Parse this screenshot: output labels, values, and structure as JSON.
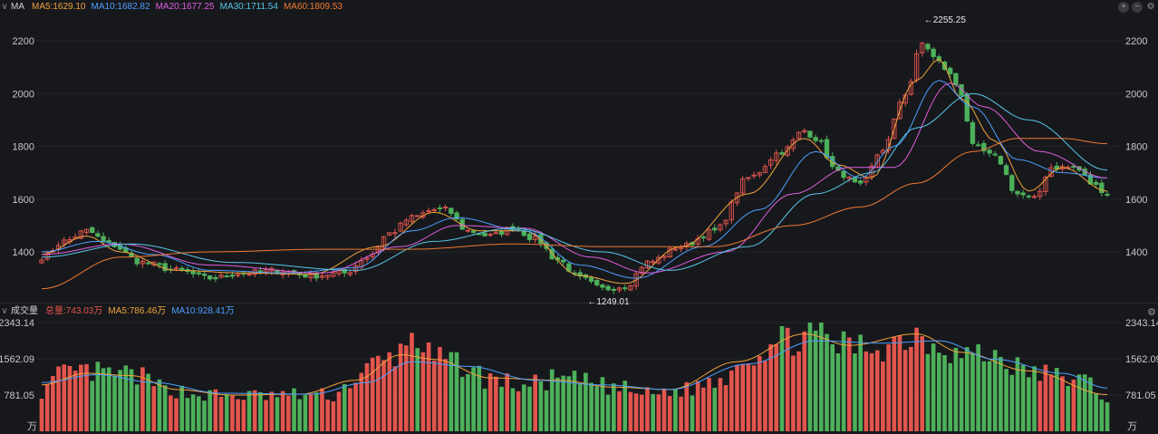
{
  "main_legend": {
    "toggle": "∨",
    "title": "MA",
    "items": [
      {
        "label": "MA5:1629.10",
        "color": "#f1a33a"
      },
      {
        "label": "MA10:1682.82",
        "color": "#4d9eff"
      },
      {
        "label": "MA20:1677.25",
        "color": "#e05fe0"
      },
      {
        "label": "MA30:1711.54",
        "color": "#58c6e6"
      },
      {
        "label": "MA60:1809.53",
        "color": "#ef7a32"
      }
    ]
  },
  "vol_legend": {
    "toggle": "∨",
    "title": "成交量",
    "items": [
      {
        "label": "总量:743.03万",
        "color": "#e2554d"
      },
      {
        "label": "MA5:786.46万",
        "color": "#f1a33a"
      },
      {
        "label": "MA10:928.41万",
        "color": "#4d9eff"
      }
    ]
  },
  "icons": {
    "add": "plus-circle-icon",
    "remove": "minus-circle-icon",
    "settings": "gear-icon"
  },
  "colors": {
    "up": "#e2554d",
    "down": "#4db05a",
    "ma5": "#f1a33a",
    "ma10": "#4d9eff",
    "ma20": "#e05fe0",
    "ma30": "#58c6e6",
    "ma60": "#ef7a32"
  },
  "chart_data": [
    {
      "type": "candlestick",
      "ylim": [
        1240,
        2270
      ],
      "yticks": [
        1400,
        1600,
        1800,
        2000,
        2200
      ],
      "ytick_labels": [
        "1400",
        "1600",
        "1800",
        "2000",
        "2200"
      ],
      "annotations": [
        {
          "label": "←2255.25",
          "index": 157,
          "value": 2255.25
        },
        {
          "label": "←1249.01",
          "index": 97,
          "value": 1249.01
        }
      ],
      "anchors": [
        [
          0,
          1380
        ],
        [
          4,
          1440
        ],
        [
          8,
          1480
        ],
        [
          12,
          1430
        ],
        [
          18,
          1360
        ],
        [
          24,
          1330
        ],
        [
          30,
          1300
        ],
        [
          36,
          1320
        ],
        [
          42,
          1330
        ],
        [
          48,
          1310
        ],
        [
          54,
          1320
        ],
        [
          58,
          1380
        ],
        [
          62,
          1470
        ],
        [
          66,
          1530
        ],
        [
          70,
          1560
        ],
        [
          72,
          1560
        ],
        [
          76,
          1480
        ],
        [
          80,
          1460
        ],
        [
          84,
          1490
        ],
        [
          88,
          1450
        ],
        [
          92,
          1370
        ],
        [
          96,
          1300
        ],
        [
          100,
          1260
        ],
        [
          104,
          1270
        ],
        [
          108,
          1360
        ],
        [
          114,
          1420
        ],
        [
          120,
          1480
        ],
        [
          126,
          1680
        ],
        [
          132,
          1780
        ],
        [
          136,
          1860
        ],
        [
          138,
          1830
        ],
        [
          142,
          1700
        ],
        [
          146,
          1650
        ],
        [
          150,
          1790
        ],
        [
          154,
          2000
        ],
        [
          157,
          2190
        ],
        [
          160,
          2120
        ],
        [
          162,
          2070
        ],
        [
          164,
          2000
        ],
        [
          166,
          1800
        ],
        [
          170,
          1760
        ],
        [
          174,
          1620
        ],
        [
          177,
          1600
        ],
        [
          180,
          1720
        ],
        [
          184,
          1720
        ],
        [
          188,
          1650
        ],
        [
          190,
          1620
        ]
      ],
      "series": [
        {
          "name": "MA5",
          "anchors": [
            [
              0,
              1390
            ],
            [
              8,
              1460
            ],
            [
              14,
              1400
            ],
            [
              24,
              1330
            ],
            [
              36,
              1320
            ],
            [
              48,
              1315
            ],
            [
              60,
              1420
            ],
            [
              70,
              1550
            ],
            [
              78,
              1480
            ],
            [
              86,
              1480
            ],
            [
              96,
              1310
            ],
            [
              104,
              1280
            ],
            [
              114,
              1420
            ],
            [
              126,
              1620
            ],
            [
              136,
              1830
            ],
            [
              142,
              1730
            ],
            [
              148,
              1680
            ],
            [
              156,
              2050
            ],
            [
              160,
              2130
            ],
            [
              164,
              1980
            ],
            [
              170,
              1820
            ],
            [
              176,
              1630
            ],
            [
              182,
              1720
            ],
            [
              190,
              1630
            ]
          ]
        },
        {
          "name": "MA10",
          "anchors": [
            [
              0,
              1400
            ],
            [
              10,
              1440
            ],
            [
              20,
              1390
            ],
            [
              30,
              1330
            ],
            [
              44,
              1320
            ],
            [
              56,
              1340
            ],
            [
              66,
              1480
            ],
            [
              74,
              1530
            ],
            [
              86,
              1480
            ],
            [
              96,
              1350
            ],
            [
              106,
              1300
            ],
            [
              118,
              1420
            ],
            [
              128,
              1560
            ],
            [
              138,
              1780
            ],
            [
              146,
              1680
            ],
            [
              152,
              1800
            ],
            [
              160,
              2050
            ],
            [
              166,
              1950
            ],
            [
              174,
              1750
            ],
            [
              182,
              1700
            ],
            [
              190,
              1680
            ]
          ]
        },
        {
          "name": "MA20",
          "anchors": [
            [
              0,
              1390
            ],
            [
              14,
              1430
            ],
            [
              30,
              1350
            ],
            [
              50,
              1320
            ],
            [
              64,
              1420
            ],
            [
              74,
              1500
            ],
            [
              86,
              1490
            ],
            [
              98,
              1380
            ],
            [
              108,
              1320
            ],
            [
              122,
              1400
            ],
            [
              134,
              1620
            ],
            [
              144,
              1720
            ],
            [
              152,
              1720
            ],
            [
              162,
              2040
            ],
            [
              168,
              1950
            ],
            [
              178,
              1780
            ],
            [
              190,
              1680
            ]
          ]
        },
        {
          "name": "MA30",
          "anchors": [
            [
              0,
              1380
            ],
            [
              16,
              1430
            ],
            [
              34,
              1360
            ],
            [
              56,
              1330
            ],
            [
              70,
              1440
            ],
            [
              84,
              1490
            ],
            [
              100,
              1400
            ],
            [
              112,
              1330
            ],
            [
              126,
              1420
            ],
            [
              138,
              1620
            ],
            [
              148,
              1700
            ],
            [
              156,
              1870
            ],
            [
              166,
              2000
            ],
            [
              176,
              1900
            ],
            [
              190,
              1710
            ]
          ]
        },
        {
          "name": "MA60",
          "anchors": [
            [
              0,
              1260
            ],
            [
              14,
              1380
            ],
            [
              30,
              1400
            ],
            [
              50,
              1410
            ],
            [
              66,
              1410
            ],
            [
              84,
              1430
            ],
            [
              100,
              1420
            ],
            [
              120,
              1420
            ],
            [
              134,
              1500
            ],
            [
              146,
              1570
            ],
            [
              156,
              1660
            ],
            [
              166,
              1780
            ],
            [
              174,
              1830
            ],
            [
              182,
              1830
            ],
            [
              190,
              1810
            ]
          ]
        }
      ]
    },
    {
      "type": "bar",
      "name": "成交量",
      "ylim": [
        0,
        2343.14
      ],
      "yticks": [
        781.05,
        1562.09,
        2343.14
      ],
      "ytick_labels": [
        "781.05",
        "1562.09",
        "2343.14"
      ],
      "unit": "万",
      "anchors": [
        [
          0,
          900
        ],
        [
          4,
          1250
        ],
        [
          8,
          1300
        ],
        [
          12,
          1250
        ],
        [
          16,
          1250
        ],
        [
          22,
          950
        ],
        [
          28,
          800
        ],
        [
          34,
          780
        ],
        [
          40,
          780
        ],
        [
          46,
          800
        ],
        [
          52,
          790
        ],
        [
          56,
          1150
        ],
        [
          60,
          1500
        ],
        [
          64,
          1700
        ],
        [
          66,
          2200
        ],
        [
          70,
          1550
        ],
        [
          74,
          1500
        ],
        [
          80,
          1150
        ],
        [
          86,
          1000
        ],
        [
          92,
          1150
        ],
        [
          96,
          1100
        ],
        [
          102,
          960
        ],
        [
          108,
          820
        ],
        [
          114,
          900
        ],
        [
          120,
          1100
        ],
        [
          126,
          1700
        ],
        [
          132,
          1950
        ],
        [
          136,
          2200
        ],
        [
          140,
          2000
        ],
        [
          144,
          1850
        ],
        [
          150,
          1900
        ],
        [
          156,
          2150
        ],
        [
          160,
          1950
        ],
        [
          164,
          1700
        ],
        [
          170,
          1650
        ],
        [
          176,
          1300
        ],
        [
          182,
          1200
        ],
        [
          186,
          1100
        ],
        [
          190,
          750
        ]
      ],
      "series": [
        {
          "name": "MA5",
          "anchors": [
            [
              0,
              1000
            ],
            [
              8,
              1250
            ],
            [
              16,
              1200
            ],
            [
              24,
              900
            ],
            [
              34,
              780
            ],
            [
              46,
              800
            ],
            [
              56,
              1100
            ],
            [
              64,
              1650
            ],
            [
              70,
              1550
            ],
            [
              80,
              1150
            ],
            [
              92,
              1100
            ],
            [
              102,
              950
            ],
            [
              112,
              900
            ],
            [
              124,
              1500
            ],
            [
              136,
              2100
            ],
            [
              144,
              1850
            ],
            [
              156,
              2100
            ],
            [
              164,
              1700
            ],
            [
              176,
              1300
            ],
            [
              190,
              790
            ]
          ]
        },
        {
          "name": "MA10",
          "anchors": [
            [
              0,
              1050
            ],
            [
              10,
              1220
            ],
            [
              20,
              1050
            ],
            [
              32,
              820
            ],
            [
              48,
              800
            ],
            [
              58,
              1050
            ],
            [
              66,
              1500
            ],
            [
              76,
              1400
            ],
            [
              88,
              1100
            ],
            [
              100,
              1000
            ],
            [
              112,
              900
            ],
            [
              126,
              1450
            ],
            [
              138,
              1950
            ],
            [
              150,
              1900
            ],
            [
              160,
              1950
            ],
            [
              170,
              1550
            ],
            [
              182,
              1250
            ],
            [
              190,
              930
            ]
          ]
        }
      ]
    }
  ]
}
